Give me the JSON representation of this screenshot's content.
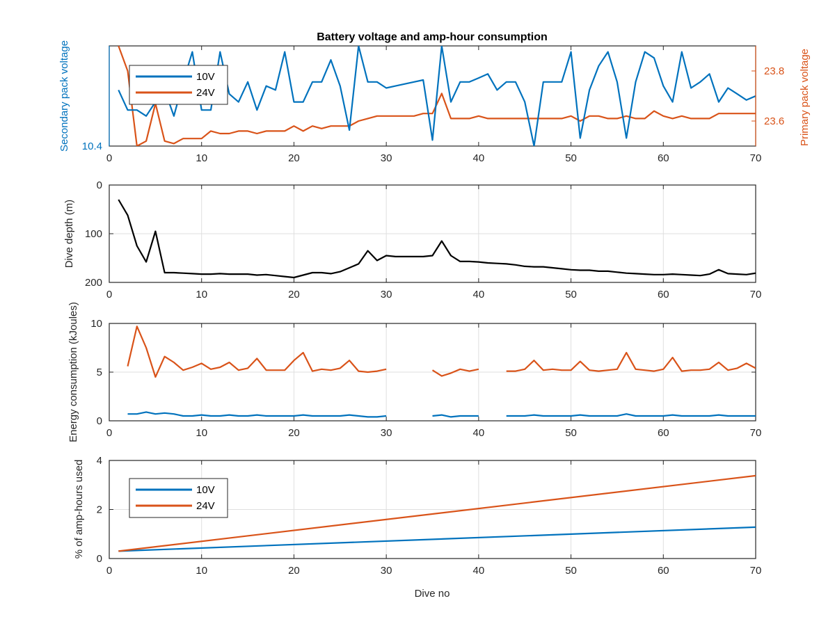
{
  "chart_data": [
    {
      "type": "line",
      "title": "Battery voltage and amp-hour consumption",
      "xlabel": "",
      "xlim": [
        0,
        70
      ],
      "xticks": [
        0,
        10,
        20,
        30,
        40,
        50,
        60,
        70
      ],
      "grid": false,
      "legend_placement": "top-left",
      "left_axis": {
        "ylabel": "Secondary pack voltage",
        "ylim": [
          10.4,
          10.9
        ],
        "yticks": [
          10.4
        ],
        "yticklabels": [
          "10.4"
        ],
        "color": "#0072BD"
      },
      "right_axis": {
        "ylabel": "Primary pack voltage",
        "ylim": [
          23.5,
          23.9
        ],
        "yticks": [
          23.6,
          23.8
        ],
        "yticklabels": [
          "23.6",
          "23.8"
        ],
        "color": "#D95319"
      },
      "series": [
        {
          "name": "10V",
          "axis": "left",
          "color": "#0072BD",
          "x": [
            1,
            2,
            3,
            4,
            5,
            6,
            7,
            8,
            9,
            10,
            11,
            12,
            13,
            14,
            15,
            16,
            17,
            18,
            19,
            20,
            21,
            22,
            23,
            24,
            25,
            26,
            27,
            28,
            29,
            30,
            31,
            32,
            33,
            34,
            35,
            36,
            37,
            38,
            39,
            40,
            41,
            42,
            43,
            44,
            45,
            46,
            47,
            48,
            49,
            50,
            51,
            52,
            53,
            54,
            55,
            56,
            57,
            58,
            59,
            60,
            61,
            62,
            63,
            64,
            65,
            66,
            67,
            68,
            69,
            70
          ],
          "values": [
            10.68,
            10.58,
            10.58,
            10.55,
            10.62,
            10.68,
            10.55,
            10.72,
            10.87,
            10.58,
            10.58,
            10.87,
            10.66,
            10.62,
            10.72,
            10.58,
            10.7,
            10.68,
            10.87,
            10.62,
            10.62,
            10.72,
            10.72,
            10.83,
            10.7,
            10.48,
            10.9,
            10.72,
            10.72,
            10.69,
            10.7,
            10.71,
            10.72,
            10.73,
            10.43,
            10.9,
            10.62,
            10.72,
            10.72,
            10.74,
            10.76,
            10.68,
            10.72,
            10.72,
            10.62,
            10.4,
            10.72,
            10.72,
            10.72,
            10.87,
            10.44,
            10.68,
            10.8,
            10.87,
            10.72,
            10.44,
            10.72,
            10.87,
            10.84,
            10.7,
            10.62,
            10.87,
            10.69,
            10.72,
            10.76,
            10.62,
            10.69,
            10.66,
            10.63,
            10.65
          ]
        },
        {
          "name": "24V",
          "axis": "right",
          "color": "#D95319",
          "x": [
            1,
            2,
            3,
            4,
            5,
            6,
            7,
            8,
            9,
            10,
            11,
            12,
            13,
            14,
            15,
            16,
            17,
            18,
            19,
            20,
            21,
            22,
            23,
            24,
            25,
            26,
            27,
            28,
            29,
            30,
            31,
            32,
            33,
            34,
            35,
            36,
            37,
            38,
            39,
            40,
            41,
            42,
            43,
            44,
            45,
            46,
            47,
            48,
            49,
            50,
            51,
            52,
            53,
            54,
            55,
            56,
            57,
            58,
            59,
            60,
            61,
            62,
            63,
            64,
            65,
            66,
            67,
            68,
            69,
            70
          ],
          "values": [
            23.9,
            23.8,
            23.5,
            23.52,
            23.67,
            23.52,
            23.51,
            23.53,
            23.53,
            23.53,
            23.56,
            23.55,
            23.55,
            23.56,
            23.56,
            23.55,
            23.56,
            23.56,
            23.56,
            23.58,
            23.56,
            23.58,
            23.57,
            23.58,
            23.58,
            23.58,
            23.6,
            23.61,
            23.62,
            23.62,
            23.62,
            23.62,
            23.62,
            23.63,
            23.63,
            23.71,
            23.61,
            23.61,
            23.61,
            23.62,
            23.61,
            23.61,
            23.61,
            23.61,
            23.61,
            23.61,
            23.61,
            23.61,
            23.61,
            23.62,
            23.6,
            23.62,
            23.62,
            23.61,
            23.61,
            23.62,
            23.61,
            23.61,
            23.64,
            23.62,
            23.61,
            23.62,
            23.61,
            23.61,
            23.61,
            23.63,
            23.63,
            23.63,
            23.63,
            23.63
          ]
        }
      ]
    },
    {
      "type": "line",
      "title": "",
      "xlabel": "",
      "ylabel": "Dive depth (m)",
      "xlim": [
        0,
        70
      ],
      "ylim": [
        0,
        200
      ],
      "y_reversed": true,
      "xticks": [
        0,
        10,
        20,
        30,
        40,
        50,
        60,
        70
      ],
      "yticks": [
        0,
        100,
        200
      ],
      "grid": true,
      "series": [
        {
          "name": "",
          "color": "#000000",
          "x": [
            1,
            2,
            3,
            4,
            5,
            6,
            7,
            8,
            9,
            10,
            11,
            12,
            13,
            14,
            15,
            16,
            17,
            18,
            19,
            20,
            21,
            22,
            23,
            24,
            25,
            26,
            27,
            28,
            29,
            30,
            31,
            32,
            33,
            34,
            35,
            36,
            37,
            38,
            39,
            40,
            41,
            42,
            43,
            44,
            45,
            46,
            47,
            48,
            49,
            50,
            51,
            52,
            53,
            54,
            55,
            56,
            57,
            58,
            59,
            60,
            61,
            62,
            63,
            64,
            65,
            66,
            67,
            68,
            69,
            70
          ],
          "values": [
            30,
            62,
            125,
            158,
            95,
            180,
            180,
            181,
            182,
            183,
            183,
            182,
            183,
            183,
            183,
            185,
            184,
            186,
            188,
            190,
            185,
            180,
            180,
            182,
            178,
            170,
            162,
            135,
            155,
            145,
            147,
            147,
            147,
            147,
            145,
            115,
            145,
            157,
            157,
            158,
            160,
            161,
            162,
            164,
            167,
            168,
            168,
            170,
            172,
            174,
            175,
            175,
            177,
            177,
            179,
            181,
            182,
            183,
            184,
            184,
            183,
            184,
            185,
            186,
            183,
            174,
            182,
            183,
            184,
            181
          ]
        }
      ]
    },
    {
      "type": "line",
      "title": "",
      "xlabel": "",
      "ylabel": "Energy consumption (kJoules)",
      "xlim": [
        0,
        70
      ],
      "ylim": [
        0,
        10
      ],
      "xticks": [
        0,
        10,
        20,
        30,
        40,
        50,
        60,
        70
      ],
      "yticks": [
        0,
        5,
        10
      ],
      "grid": true,
      "series": [
        {
          "name": "",
          "color": "#D95319",
          "x": [
            2,
            3,
            4,
            5,
            6,
            7,
            8,
            9,
            10,
            11,
            12,
            13,
            14,
            15,
            16,
            17,
            18,
            19,
            20,
            21,
            22,
            23,
            24,
            25,
            26,
            27,
            28,
            29,
            30,
            null,
            35,
            36,
            37,
            38,
            39,
            40,
            null,
            43,
            44,
            45,
            46,
            47,
            48,
            49,
            50,
            51,
            52,
            53,
            54,
            55,
            56,
            57,
            58,
            59,
            60,
            61,
            62,
            63,
            64,
            65,
            66,
            67,
            68,
            69,
            70
          ],
          "values": [
            5.6,
            9.7,
            7.5,
            4.5,
            6.6,
            6.0,
            5.2,
            5.5,
            5.9,
            5.3,
            5.5,
            6.0,
            5.2,
            5.4,
            6.4,
            5.2,
            5.2,
            5.2,
            6.2,
            7.0,
            5.1,
            5.3,
            5.2,
            5.4,
            6.2,
            5.1,
            5.0,
            5.1,
            5.3,
            null,
            5.2,
            4.6,
            4.9,
            5.3,
            5.1,
            5.3,
            null,
            5.1,
            5.1,
            5.3,
            6.2,
            5.2,
            5.3,
            5.2,
            5.2,
            6.1,
            5.2,
            5.1,
            5.2,
            5.3,
            7.0,
            5.3,
            5.2,
            5.1,
            5.3,
            6.5,
            5.1,
            5.2,
            5.2,
            5.3,
            6.0,
            5.2,
            5.4,
            5.9,
            5.4
          ]
        },
        {
          "name": "",
          "color": "#0072BD",
          "x": [
            2,
            3,
            4,
            5,
            6,
            7,
            8,
            9,
            10,
            11,
            12,
            13,
            14,
            15,
            16,
            17,
            18,
            19,
            20,
            21,
            22,
            23,
            24,
            25,
            26,
            27,
            28,
            29,
            30,
            null,
            35,
            36,
            37,
            38,
            39,
            40,
            null,
            43,
            44,
            45,
            46,
            47,
            48,
            49,
            50,
            51,
            52,
            53,
            54,
            55,
            56,
            57,
            58,
            59,
            60,
            61,
            62,
            63,
            64,
            65,
            66,
            67,
            68,
            69,
            70
          ],
          "values": [
            0.7,
            0.7,
            0.9,
            0.7,
            0.8,
            0.7,
            0.5,
            0.5,
            0.6,
            0.5,
            0.5,
            0.6,
            0.5,
            0.5,
            0.6,
            0.5,
            0.5,
            0.5,
            0.5,
            0.6,
            0.5,
            0.5,
            0.5,
            0.5,
            0.6,
            0.5,
            0.4,
            0.4,
            0.5,
            null,
            0.5,
            0.6,
            0.4,
            0.5,
            0.5,
            0.5,
            null,
            0.5,
            0.5,
            0.5,
            0.6,
            0.5,
            0.5,
            0.5,
            0.5,
            0.6,
            0.5,
            0.5,
            0.5,
            0.5,
            0.7,
            0.5,
            0.5,
            0.5,
            0.5,
            0.6,
            0.5,
            0.5,
            0.5,
            0.5,
            0.6,
            0.5,
            0.5,
            0.5,
            0.5
          ]
        }
      ]
    },
    {
      "type": "line",
      "title": "",
      "xlabel": "Dive no",
      "ylabel": "% of amp-hours used",
      "xlim": [
        0,
        70
      ],
      "ylim": [
        0,
        4
      ],
      "xticks": [
        0,
        10,
        20,
        30,
        40,
        50,
        60,
        70
      ],
      "yticks": [
        0,
        2,
        4
      ],
      "grid": true,
      "legend_placement": "top-left",
      "series": [
        {
          "name": "10V",
          "color": "#0072BD",
          "x": [
            1,
            70
          ],
          "values": [
            0.3,
            1.28
          ]
        },
        {
          "name": "24V",
          "color": "#D95319",
          "x": [
            1,
            70
          ],
          "values": [
            0.3,
            3.38
          ]
        }
      ]
    }
  ]
}
